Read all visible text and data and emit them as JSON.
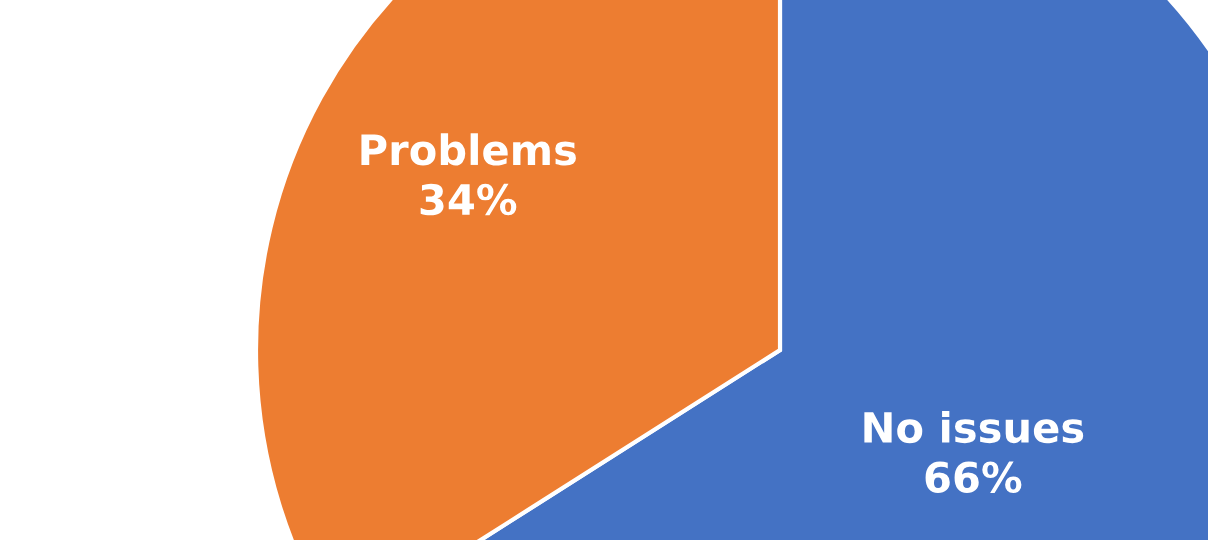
{
  "chart_data": {
    "type": "pie",
    "categories": [
      "No issues",
      "Problems"
    ],
    "values": [
      66,
      34
    ],
    "colors": [
      "#4472c4",
      "#ed7d31"
    ],
    "value_labels": [
      "66%",
      "34%"
    ]
  }
}
